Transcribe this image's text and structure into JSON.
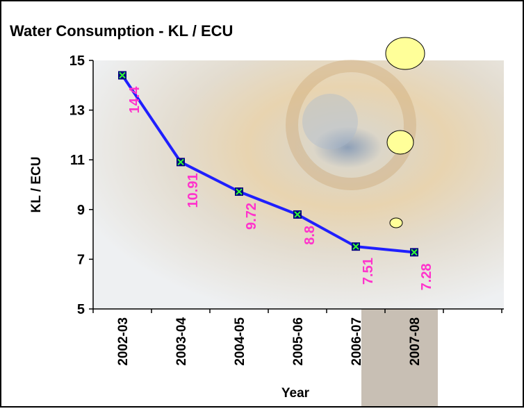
{
  "chart_data": {
    "type": "line",
    "title": "Water Consumption  - KL   / ECU",
    "x_label": "Year",
    "y_label": "KL / ECU",
    "categories": [
      "2002-03",
      "2003-04",
      "2004-05",
      "2005-06",
      "2006-07",
      "2007-08",
      null
    ],
    "series": [
      {
        "name": "KL / ECU",
        "color": "#1f1fff",
        "label_color": "#ff33cc",
        "values": [
          14.4,
          10.91,
          9.72,
          8.8,
          7.51,
          7.28,
          null
        ]
      }
    ],
    "ylim": [
      5,
      15
    ],
    "yticks": [
      5,
      7,
      9,
      11,
      13,
      15
    ]
  }
}
